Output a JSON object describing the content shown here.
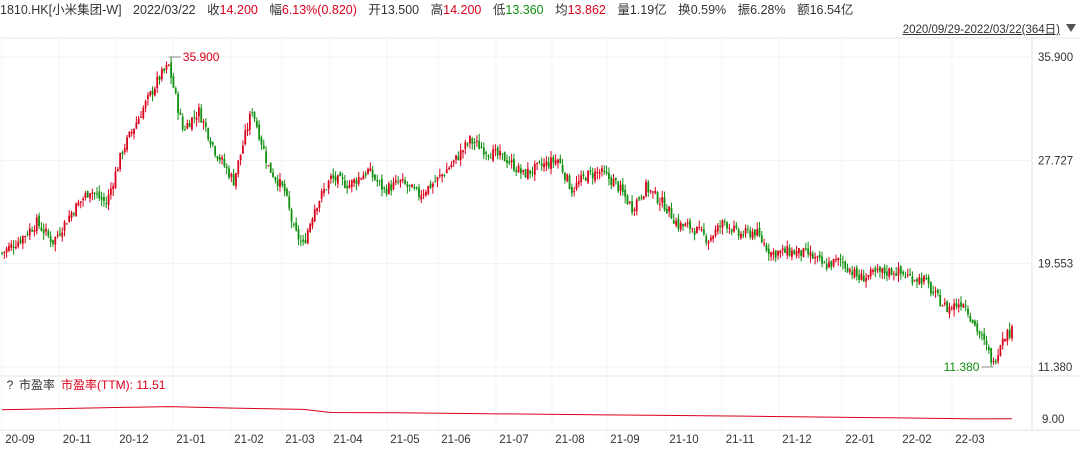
{
  "header": {
    "code": "1810.HK[小米集团-W]",
    "date": "2022/03/22",
    "close_label": "收",
    "close": "14.200",
    "change_label": "幅",
    "change": "6.13%(0.820)",
    "open_label": "开",
    "open": "13.500",
    "high_label": "高",
    "high": "14.200",
    "low_label": "低",
    "low": "13.360",
    "avg_label": "均",
    "avg": "13.862",
    "volume_label": "量",
    "volume": "1.19亿",
    "turnover_label": "换",
    "turnover": "0.59%",
    "amplitude_label": "振",
    "amplitude": "6.28%",
    "amount_label": "额",
    "amount": "16.54亿"
  },
  "range_selector": {
    "label": "2020/09/29-2022/03/22(364日)",
    "icon": "triangle-down-icon"
  },
  "pe_panel": {
    "help": "?",
    "name": "市盈率",
    "series_label": "市盈率(TTM): 11.51",
    "ytick": "9.00"
  },
  "colors": {
    "up": "#d9001b",
    "down": "#109010",
    "pe_line": "#d9001b"
  },
  "chart_data": {
    "type": "candlestick",
    "y_ticks": [
      "35.900",
      "27.727",
      "19.553",
      "11.380"
    ],
    "ylim": [
      11.38,
      35.9
    ],
    "x_ticks": [
      "20-09",
      "20-11",
      "20-12",
      "21-01",
      "21-02",
      "21-03",
      "21-04",
      "21-05",
      "21-06",
      "21-07",
      "21-08",
      "21-09",
      "21-10",
      "21-11",
      "21-12",
      "22-01",
      "22-02",
      "22-03"
    ],
    "annotations": [
      {
        "text": "35.900",
        "kind": "max"
      },
      {
        "text": "11.380",
        "kind": "min"
      }
    ],
    "close_path": [
      [
        0,
        20.4
      ],
      [
        8,
        21.5
      ],
      [
        15,
        22.8
      ],
      [
        22,
        21.3
      ],
      [
        30,
        23.6
      ],
      [
        38,
        25.4
      ],
      [
        45,
        24.3
      ],
      [
        52,
        28.5
      ],
      [
        60,
        31.5
      ],
      [
        68,
        34.3
      ],
      [
        72,
        35.2
      ],
      [
        78,
        30.2
      ],
      [
        85,
        31.6
      ],
      [
        92,
        28.5
      ],
      [
        100,
        26.1
      ],
      [
        108,
        31.8
      ],
      [
        115,
        27.2
      ],
      [
        122,
        25.3
      ],
      [
        126,
        22.2
      ],
      [
        130,
        21.0
      ],
      [
        135,
        24.0
      ],
      [
        142,
        26.3
      ],
      [
        150,
        25.8
      ],
      [
        158,
        26.9
      ],
      [
        165,
        25.4
      ],
      [
        172,
        26.0
      ],
      [
        180,
        25.0
      ],
      [
        188,
        26.2
      ],
      [
        195,
        27.6
      ],
      [
        202,
        29.3
      ],
      [
        210,
        28.4
      ],
      [
        218,
        27.8
      ],
      [
        225,
        26.6
      ],
      [
        232,
        27.2
      ],
      [
        240,
        27.8
      ],
      [
        246,
        25.4
      ],
      [
        252,
        26.5
      ],
      [
        258,
        26.8
      ],
      [
        265,
        25.9
      ],
      [
        272,
        24.0
      ],
      [
        278,
        25.6
      ],
      [
        286,
        24.2
      ],
      [
        292,
        22.6
      ],
      [
        298,
        22.4
      ],
      [
        305,
        21.5
      ],
      [
        312,
        22.9
      ],
      [
        318,
        21.8
      ],
      [
        325,
        22.1
      ],
      [
        332,
        20.4
      ],
      [
        340,
        20.5
      ],
      [
        348,
        20.3
      ],
      [
        355,
        19.4
      ],
      [
        362,
        19.8
      ],
      [
        370,
        18.4
      ],
      [
        378,
        18.8
      ],
      [
        385,
        19.0
      ],
      [
        392,
        18.5
      ],
      [
        398,
        18.3
      ],
      [
        402,
        17.2
      ],
      [
        408,
        16.0
      ],
      [
        415,
        16.6
      ],
      [
        420,
        14.7
      ],
      [
        425,
        12.9
      ],
      [
        428,
        11.6
      ],
      [
        432,
        13.9
      ],
      [
        436,
        14.2
      ]
    ],
    "pe_series": [
      [
        0,
        0.8
      ],
      [
        30,
        0.88
      ],
      [
        52,
        0.95
      ],
      [
        72,
        1.0
      ],
      [
        100,
        0.9
      ],
      [
        130,
        0.82
      ],
      [
        142,
        0.62
      ],
      [
        170,
        0.6
      ],
      [
        200,
        0.55
      ],
      [
        260,
        0.46
      ],
      [
        320,
        0.38
      ],
      [
        380,
        0.28
      ],
      [
        420,
        0.2
      ],
      [
        436,
        0.21
      ]
    ]
  }
}
